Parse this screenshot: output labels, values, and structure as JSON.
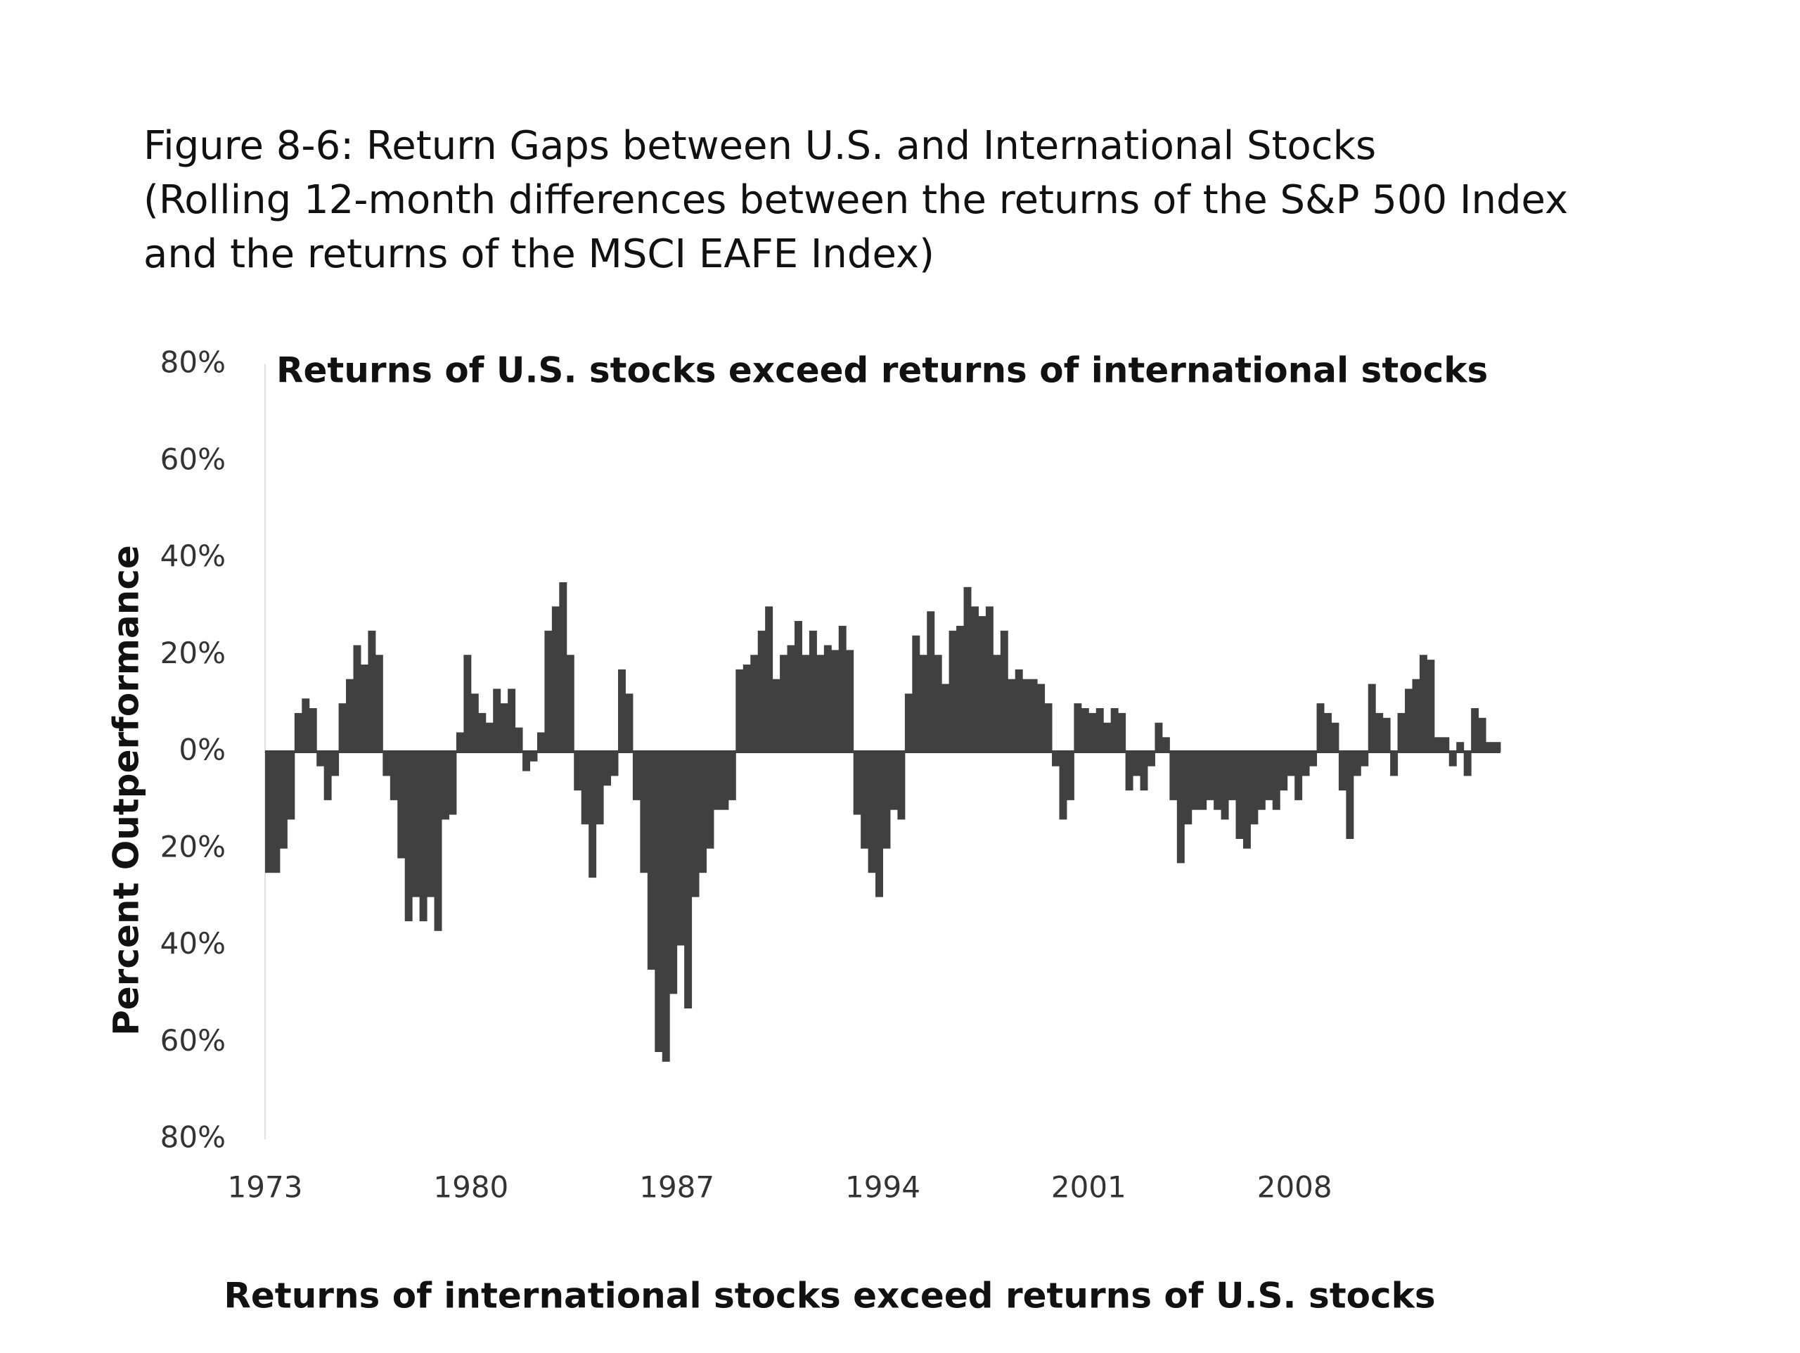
{
  "chart_data": {
    "type": "bar",
    "title": "Figure 8-6: Return Gaps between U.S. and International Stocks",
    "subtitle": [
      "(Rolling 12-month differences between the returns of the S&P 500 Index",
      "and the returns of the MSCI EAFE Index)"
    ],
    "annotations": [
      "Returns of U.S. stocks exceed returns of international stocks",
      "Returns of international stocks exceed returns of U.S. stocks"
    ],
    "y_label": "Percent Outperformance",
    "color": "#404040",
    "xlim": [
      1973,
      2015
    ],
    "xticks": [
      1973,
      1980,
      1987,
      1994,
      2001,
      2008
    ],
    "ylim": [
      -80,
      80
    ],
    "yticks": [
      {
        "value": 80,
        "label": "80%"
      },
      {
        "value": 60,
        "label": "60%"
      },
      {
        "value": 40,
        "label": "40%"
      },
      {
        "value": 20,
        "label": "20%"
      },
      {
        "value": 0,
        "label": "0%"
      },
      {
        "value": -20,
        "label": "20%"
      },
      {
        "value": -40,
        "label": "40%"
      },
      {
        "value": -60,
        "label": "60%"
      },
      {
        "value": -80,
        "label": "80%"
      }
    ],
    "x": [
      1973,
      1973.25,
      1973.5,
      1973.75,
      1974,
      1974.25,
      1974.5,
      1974.75,
      1975,
      1975.25,
      1975.5,
      1975.75,
      1976,
      1976.25,
      1976.5,
      1976.75,
      1977,
      1977.25,
      1977.5,
      1977.75,
      1978,
      1978.25,
      1978.5,
      1978.75,
      1979,
      1979.25,
      1979.5,
      1979.75,
      1980,
      1980.25,
      1980.5,
      1980.75,
      1981,
      1981.25,
      1981.5,
      1981.75,
      1982,
      1982.25,
      1982.5,
      1982.75,
      1983,
      1983.25,
      1983.5,
      1983.75,
      1984,
      1984.25,
      1984.5,
      1984.75,
      1985,
      1985.25,
      1985.5,
      1985.75,
      1986,
      1986.25,
      1986.5,
      1986.75,
      1987,
      1987.25,
      1987.5,
      1987.75,
      1988,
      1988.25,
      1988.5,
      1988.75,
      1989,
      1989.25,
      1989.5,
      1989.75,
      1990,
      1990.25,
      1990.5,
      1990.75,
      1991,
      1991.25,
      1991.5,
      1991.75,
      1992,
      1992.25,
      1992.5,
      1992.75,
      1993,
      1993.25,
      1993.5,
      1993.75,
      1994,
      1994.25,
      1994.5,
      1994.75,
      1995,
      1995.25,
      1995.5,
      1995.75,
      1996,
      1996.25,
      1996.5,
      1996.75,
      1997,
      1997.25,
      1997.5,
      1997.75,
      1998,
      1998.25,
      1998.5,
      1998.75,
      1999,
      1999.25,
      1999.5,
      1999.75,
      2000,
      2000.25,
      2000.5,
      2000.75,
      2001,
      2001.25,
      2001.5,
      2001.75,
      2002,
      2002.25,
      2002.5,
      2002.75,
      2003,
      2003.25,
      2003.5,
      2003.75,
      2004,
      2004.25,
      2004.5,
      2004.75,
      2005,
      2005.25,
      2005.5,
      2005.75,
      2006,
      2006.25,
      2006.5,
      2006.75,
      2007,
      2007.25,
      2007.5,
      2007.75,
      2008,
      2008.25,
      2008.5,
      2008.75,
      2009,
      2009.25,
      2009.5,
      2009.75,
      2010,
      2010.25,
      2010.5,
      2010.75,
      2011,
      2011.25,
      2011.5,
      2011.75,
      2012,
      2012.25,
      2012.5,
      2012.75,
      2013,
      2013.25,
      2013.5,
      2013.75,
      2014,
      2014.25,
      2014.5,
      2014.75
    ],
    "values": [
      -25,
      -25,
      -20,
      -14,
      8,
      11,
      9,
      -3,
      -10,
      -5,
      10,
      15,
      22,
      18,
      25,
      20,
      -5,
      -10,
      -22,
      -35,
      -30,
      -35,
      -30,
      -37,
      -14,
      -13,
      4,
      20,
      12,
      8,
      6,
      13,
      10,
      13,
      5,
      -4,
      -2,
      4,
      25,
      30,
      35,
      20,
      -8,
      -15,
      -26,
      -15,
      -7,
      -5,
      17,
      12,
      -10,
      -25,
      -45,
      -62,
      -64,
      -50,
      -40,
      -53,
      -30,
      -25,
      -20,
      -12,
      -12,
      -10,
      17,
      18,
      20,
      25,
      30,
      15,
      20,
      22,
      27,
      20,
      25,
      20,
      22,
      21,
      26,
      21,
      -13,
      -20,
      -25,
      -30,
      -20,
      -12,
      -14,
      12,
      24,
      20,
      29,
      20,
      14,
      25,
      26,
      34,
      30,
      28,
      30,
      20,
      25,
      15,
      17,
      15,
      15,
      14,
      10,
      -3,
      -14,
      -10,
      10,
      9,
      8,
      9,
      6,
      9,
      8,
      -8,
      -5,
      -8,
      -3,
      6,
      3,
      -10,
      -23,
      -15,
      -12,
      -12,
      -10,
      -12,
      -14,
      -10,
      -18,
      -20,
      -15,
      -12,
      -10,
      -12,
      -8,
      -5,
      -10,
      -5,
      -3,
      10,
      8,
      6,
      -8,
      -18,
      -5,
      -3,
      14,
      8,
      7,
      -5,
      8,
      13,
      15,
      20,
      19,
      3,
      3,
      -3,
      2,
      -5,
      9,
      7,
      2,
      2
    ]
  }
}
